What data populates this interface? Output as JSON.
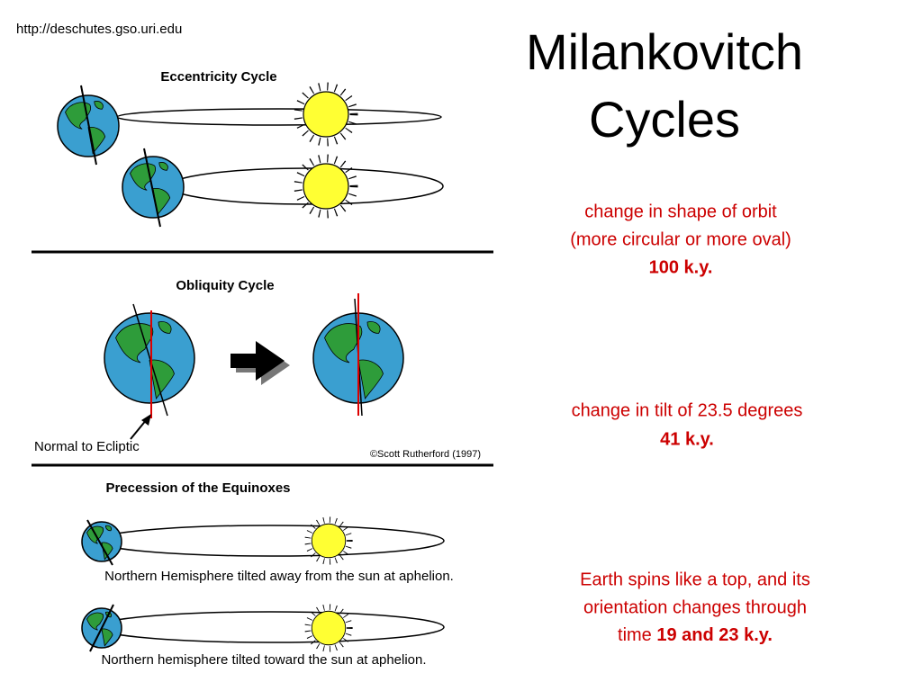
{
  "source_url": "http://deschutes.gso.uri.edu",
  "title": {
    "lines": [
      "Milankovitch",
      "Cycles"
    ]
  },
  "figure": {
    "eccentricity": {
      "label": "Eccentricity Cycle"
    },
    "obliquity": {
      "label": "Obliquity Cycle",
      "normal_label": "Normal to Ecliptic",
      "credit": "©Scott Rutherford (1997)"
    },
    "precession": {
      "label": "Precession of the Equinoxes",
      "captions": [
        "Northern Hemisphere tilted away from the sun at aphelion.",
        "Northern hemisphere tilted toward the sun at aphelion."
      ]
    }
  },
  "descriptions": [
    {
      "lines": [
        "change in shape of orbit",
        "(more circular or more oval)"
      ],
      "period": "100 k.y."
    },
    {
      "lines": [
        "change in tilt of 23.5 degrees"
      ],
      "period": "41 k.y."
    },
    {
      "lines": [
        "Earth spins like a top, and its",
        "orientation changes through",
        "time"
      ],
      "period": "19 and 23 k.y."
    }
  ]
}
